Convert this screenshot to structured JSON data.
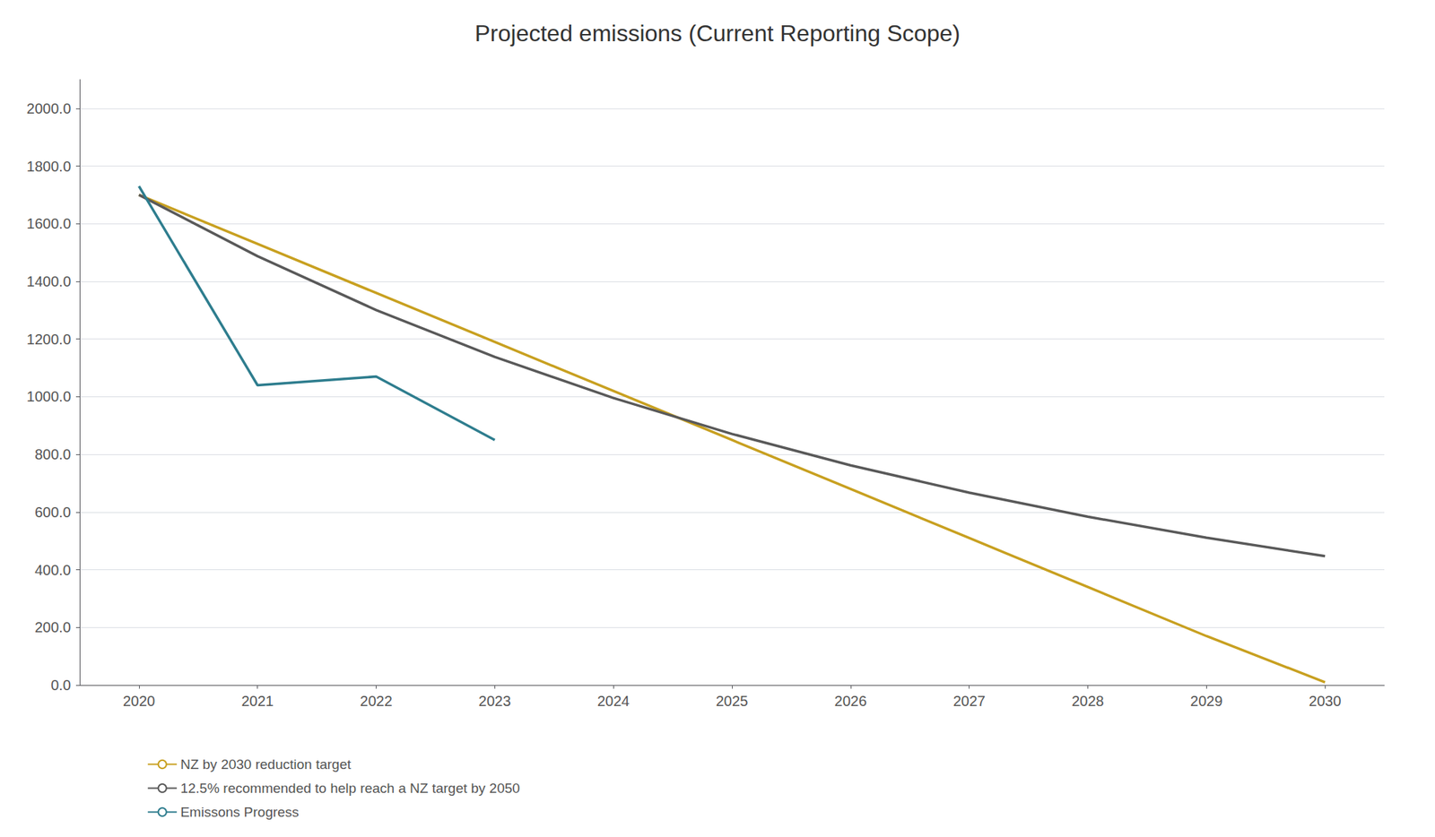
{
  "chart_data": {
    "type": "line",
    "title": "Projected emissions (Current Reporting Scope)",
    "series": [
      {
        "name": "NZ by 2030 reduction target",
        "color": "#c8a020",
        "x": [
          2020,
          2021,
          2022,
          2023,
          2024,
          2025,
          2026,
          2027,
          2028,
          2029,
          2030
        ],
        "values": [
          1700,
          1530,
          1360,
          1190,
          1020,
          850,
          680,
          510,
          340,
          170,
          10
        ]
      },
      {
        "name": "12.5% recommended to help reach a NZ target by 2050",
        "color": "#595959",
        "x": [
          2020,
          2021,
          2022,
          2023,
          2024,
          2025,
          2026,
          2027,
          2028,
          2029,
          2030
        ],
        "values": [
          1700,
          1487.5,
          1300.6,
          1138.0,
          995.8,
          871.0,
          762.1,
          667.3,
          583.9,
          511.0,
          447.1
        ]
      },
      {
        "name": "Emissons Progress",
        "color": "#2e7d8e",
        "x": [
          2020,
          2021,
          2022,
          2023
        ],
        "values": [
          1730,
          1040,
          1070,
          850
        ]
      }
    ],
    "xlim": [
      2019.5,
      2030.5
    ],
    "xticks": [
      2020,
      2021,
      2022,
      2023,
      2024,
      2025,
      2026,
      2027,
      2028,
      2029,
      2030
    ],
    "ylim": [
      0,
      2100
    ],
    "yticks": [
      {
        "value": 0,
        "label": "0.0"
      },
      {
        "value": 200,
        "label": "200.0"
      },
      {
        "value": 400,
        "label": "400.0"
      },
      {
        "value": 600,
        "label": "600.0"
      },
      {
        "value": 800,
        "label": "800.0"
      },
      {
        "value": 1000,
        "label": "1000.0"
      },
      {
        "value": 1200,
        "label": "1200.0"
      },
      {
        "value": 1400,
        "label": "1400.0"
      },
      {
        "value": 1600,
        "label": "1600.0"
      },
      {
        "value": 1800,
        "label": "1800.0"
      },
      {
        "value": 2000,
        "label": "2000.0"
      }
    ],
    "grid": true,
    "legend": "bottom"
  }
}
